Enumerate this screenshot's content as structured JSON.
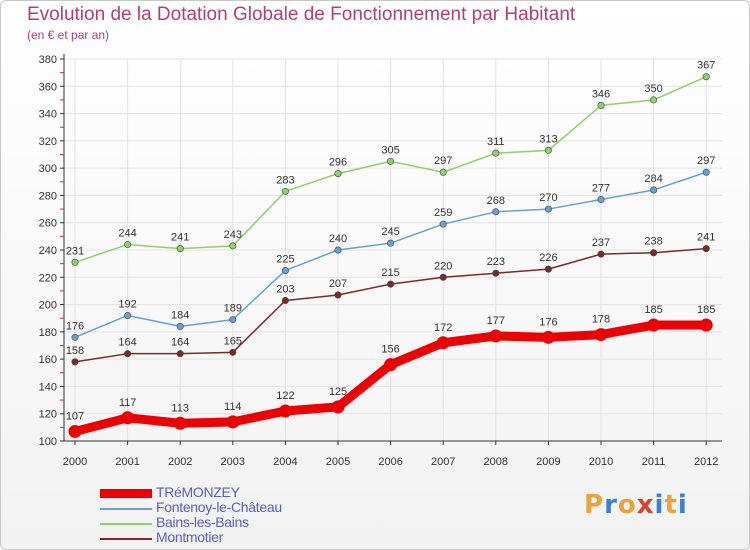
{
  "header": {
    "title": "Evolution de la Dotation Globale de Fonctionnement par Habitant",
    "subtitle": "(en € et par an)"
  },
  "logo": {
    "text": "Proxiti",
    "letter_colors": [
      "#e8a33a",
      "#3a7fd5",
      "#e8a33a",
      "#d8402f",
      "#3a7fd5",
      "#e8a33a",
      "#3a7fd5"
    ]
  },
  "chart_data": {
    "type": "line",
    "x": [
      "2000",
      "2001",
      "2002",
      "2003",
      "2004",
      "2005",
      "2006",
      "2007",
      "2008",
      "2009",
      "2010",
      "2011",
      "2012"
    ],
    "ylim": [
      100,
      380
    ],
    "yticks": [
      100,
      120,
      140,
      160,
      180,
      200,
      220,
      240,
      260,
      280,
      300,
      320,
      340,
      360,
      380
    ],
    "grid": true,
    "legend_position": "bottom-left",
    "series": [
      {
        "name": "TRéMONZEY",
        "color": "#ee0000",
        "emphasis": true,
        "values": [
          107,
          117,
          113,
          114,
          122,
          125,
          156,
          172,
          177,
          176,
          178,
          185,
          185
        ]
      },
      {
        "name": "Fontenoy-le-Château",
        "color": "#6a9fd4",
        "emphasis": false,
        "values": [
          176,
          192,
          184,
          189,
          225,
          240,
          245,
          259,
          268,
          270,
          277,
          284,
          297
        ]
      },
      {
        "name": "Bains-les-Bains",
        "color": "#8fd06a",
        "emphasis": false,
        "values": [
          231,
          244,
          241,
          243,
          283,
          296,
          305,
          297,
          311,
          313,
          346,
          350,
          367
        ]
      },
      {
        "name": "Montmotier",
        "color": "#7a2a2a",
        "emphasis": false,
        "values": [
          158,
          164,
          164,
          165,
          203,
          207,
          215,
          220,
          223,
          226,
          237,
          238,
          241
        ]
      }
    ]
  }
}
